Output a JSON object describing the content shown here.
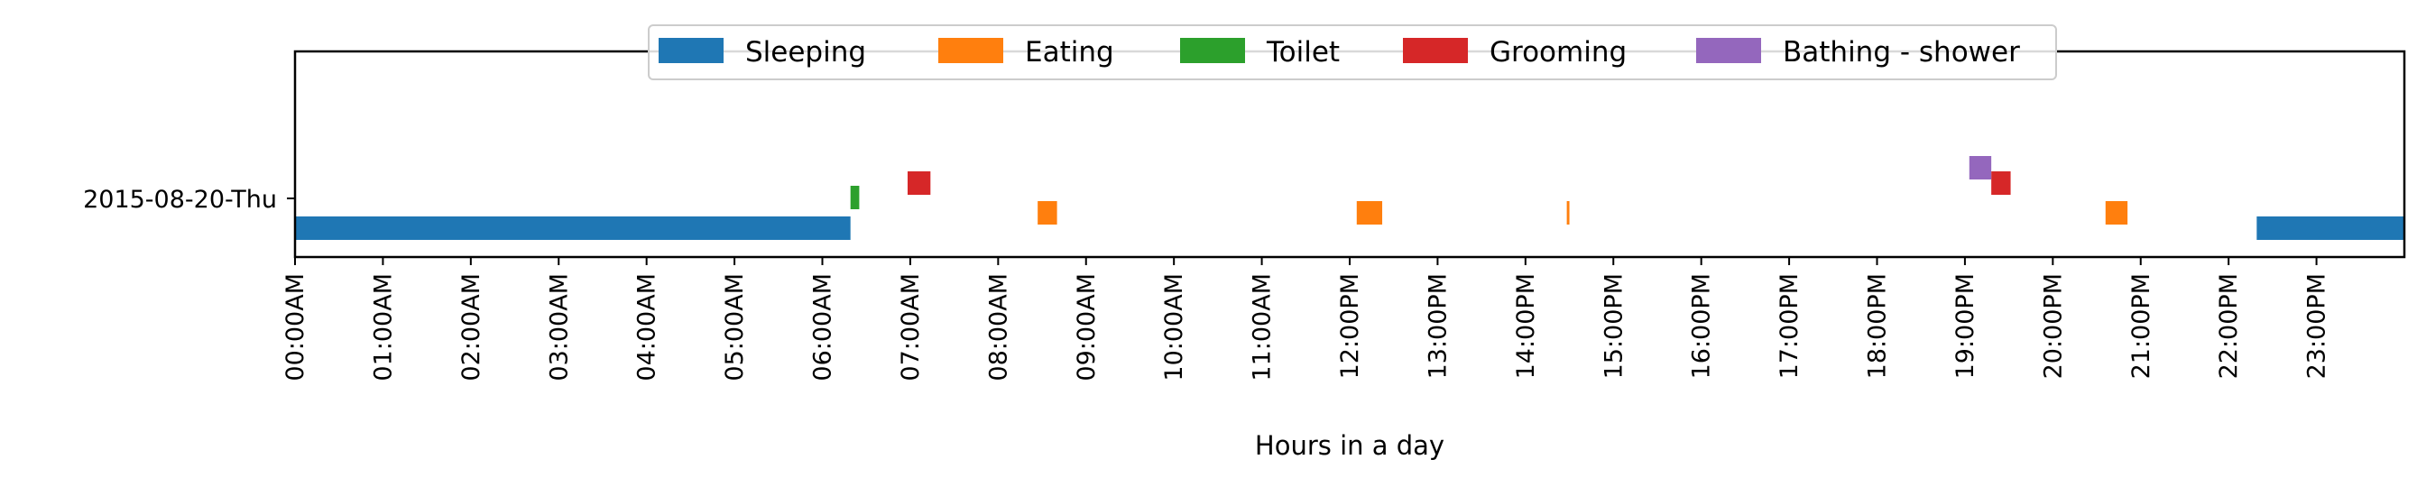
{
  "chart_data": {
    "type": "bar",
    "subtype": "activity-timeline",
    "xlabel": "Hours in a day",
    "ylabel": "",
    "xlim": [
      0,
      24
    ],
    "x_unit": "hour of day",
    "y_categories": [
      "2015-08-20-Thu"
    ],
    "x_tick_labels": [
      "00:00AM",
      "01:00AM",
      "02:00AM",
      "03:00AM",
      "04:00AM",
      "05:00AM",
      "06:00AM",
      "07:00AM",
      "08:00AM",
      "09:00AM",
      "10:00AM",
      "11:00AM",
      "12:00PM",
      "13:00PM",
      "14:00PM",
      "15:00PM",
      "16:00PM",
      "17:00PM",
      "18:00PM",
      "19:00PM",
      "20:00PM",
      "21:00PM",
      "22:00PM",
      "23:00PM"
    ],
    "legend": {
      "placement": "top-center",
      "entries": [
        "Sleeping",
        "Eating",
        "Toilet",
        "Grooming",
        "Bathing - shower"
      ]
    },
    "grid": false,
    "series": [
      {
        "name": "Sleeping",
        "color": "#1f77b4",
        "level": 0,
        "intervals": [
          [
            0.0,
            6.32
          ],
          [
            22.32,
            24.0
          ]
        ]
      },
      {
        "name": "Eating",
        "color": "#ff7f0e",
        "level": 1,
        "intervals": [
          [
            8.45,
            8.67
          ],
          [
            12.08,
            12.37
          ],
          [
            14.47,
            14.5
          ],
          [
            20.6,
            20.85
          ]
        ]
      },
      {
        "name": "Toilet",
        "color": "#2ca02c",
        "level": 2,
        "intervals": [
          [
            6.32,
            6.42
          ]
        ]
      },
      {
        "name": "Grooming",
        "color": "#d62728",
        "level": 3,
        "intervals": [
          [
            6.97,
            7.23
          ],
          [
            19.3,
            19.52
          ]
        ]
      },
      {
        "name": "Bathing - shower",
        "color": "#9467bd",
        "level": 4,
        "intervals": [
          [
            19.05,
            19.3
          ]
        ]
      }
    ]
  }
}
